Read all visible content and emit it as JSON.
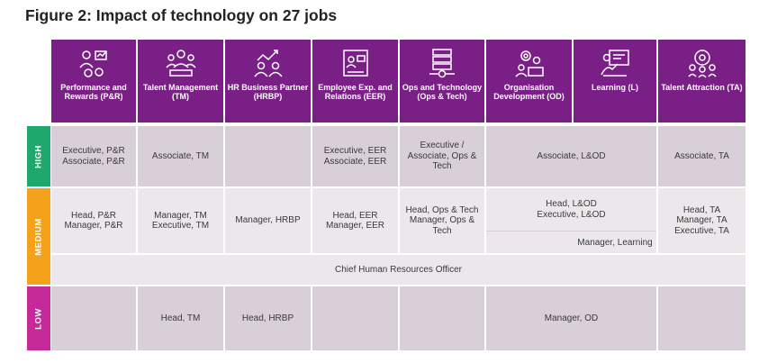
{
  "title": "Figure 2: Impact of technology on 27 jobs",
  "colors": {
    "header": "#7a1f86",
    "high": "#1fa86d",
    "medium": "#f4a11c",
    "low": "#c42a9a",
    "cell_dark": "#d9cfd8",
    "cell_light": "#ece7eb"
  },
  "headers": [
    {
      "label": "Performance and Rewards (P&R)",
      "icon": "performance-rewards-icon"
    },
    {
      "label": "Talent Management (TM)",
      "icon": "talent-management-icon"
    },
    {
      "label": "HR Business Partner (HRBP)",
      "icon": "business-partner-icon"
    },
    {
      "label": "Employee Exp. and Relations (EER)",
      "icon": "employee-experience-icon"
    },
    {
      "label": "Ops and Technology (Ops & Tech)",
      "icon": "ops-technology-icon"
    },
    {
      "label": "Organisation Development (OD)",
      "icon": "organisation-development-icon"
    },
    {
      "label": "Learning (L)",
      "icon": "learning-icon"
    },
    {
      "label": "Talent Attraction (TA)",
      "icon": "talent-attraction-icon"
    }
  ],
  "levels": {
    "high": "HIGH",
    "medium": "MEDIUM",
    "low": "LOW"
  },
  "high": [
    "Executive, P&R Associate, P&R",
    "Associate, TM",
    "",
    "Executive, EER Associate, EER",
    "Executive / Associate, Ops & Tech",
    "Associate, L&OD",
    "Associate, TA"
  ],
  "medium": [
    "Head, P&R Manager, P&R",
    "Manager, TM Executive, TM",
    "Manager, HRBP",
    "Head, EER Manager, EER",
    "Head, Ops & Tech Manager, Ops & Tech",
    "Head, L&OD Executive, L&OD",
    "Manager, Learning",
    "Head, TA Manager, TA Executive, TA"
  ],
  "medium_span": "Chief Human Resources Officer",
  "low": [
    "",
    "Head, TM",
    "Head, HRBP",
    "",
    "",
    "Manager, OD",
    ""
  ]
}
